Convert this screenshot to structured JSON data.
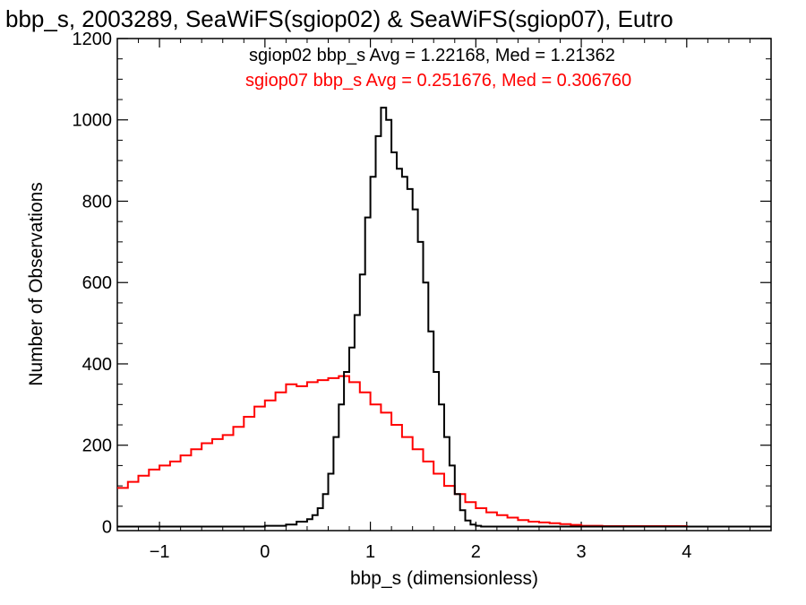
{
  "chart_data": {
    "type": "line",
    "title": "bbp_s, 2003289, SeaWiFS(sgiop02) & SeaWiFS(sgiop07), Eutro",
    "xlabel": "bbp_s (dimensionless)",
    "ylabel": "Number of Observations",
    "xlim": [
      -1.4,
      4.8
    ],
    "ylim": [
      -10,
      1200
    ],
    "x_ticks": [
      -1,
      0,
      1,
      2,
      3,
      4
    ],
    "x_tick_labels": [
      "−1",
      "0",
      "1",
      "2",
      "3",
      "4"
    ],
    "y_ticks": [
      0,
      200,
      400,
      600,
      800,
      1000,
      1200
    ],
    "y_tick_labels": [
      "0",
      "200",
      "400",
      "600",
      "800",
      "1000",
      "1200"
    ],
    "grid": false,
    "legend_position": "top-right",
    "series": [
      {
        "name": "sgiop02 bbp_s Avg = 1.22168, Med = 1.21362",
        "color": "#000000",
        "step": "histogram",
        "x": [
          -1.4,
          0.0,
          0.2,
          0.3,
          0.4,
          0.45,
          0.5,
          0.55,
          0.6,
          0.65,
          0.7,
          0.75,
          0.8,
          0.85,
          0.9,
          0.95,
          1.0,
          1.05,
          1.1,
          1.15,
          1.2,
          1.25,
          1.3,
          1.35,
          1.4,
          1.45,
          1.5,
          1.55,
          1.6,
          1.65,
          1.7,
          1.75,
          1.8,
          1.85,
          1.9,
          1.95,
          2.0,
          2.05,
          2.1,
          4.8
        ],
        "y": [
          0,
          2,
          5,
          12,
          18,
          28,
          45,
          80,
          130,
          220,
          300,
          380,
          440,
          520,
          620,
          760,
          860,
          960,
          1030,
          1000,
          920,
          880,
          860,
          830,
          780,
          700,
          600,
          480,
          380,
          300,
          220,
          150,
          80,
          40,
          15,
          5,
          2,
          0,
          0,
          0
        ]
      },
      {
        "name": "sgiop07 bbp_s Avg = 0.251676, Med = 0.306760",
        "color": "#ff0000",
        "step": "histogram",
        "x": [
          -1.4,
          -1.3,
          -1.2,
          -1.1,
          -1.0,
          -0.9,
          -0.8,
          -0.7,
          -0.6,
          -0.5,
          -0.4,
          -0.3,
          -0.2,
          -0.1,
          0.0,
          0.1,
          0.2,
          0.3,
          0.4,
          0.5,
          0.6,
          0.7,
          0.8,
          0.9,
          1.0,
          1.1,
          1.2,
          1.3,
          1.4,
          1.5,
          1.6,
          1.7,
          1.8,
          1.9,
          2.0,
          2.1,
          2.2,
          2.3,
          2.4,
          2.5,
          2.6,
          2.7,
          2.8,
          2.9,
          3.0,
          3.2,
          3.5,
          4.0,
          4.8
        ],
        "y": [
          95,
          110,
          125,
          140,
          150,
          160,
          175,
          190,
          205,
          215,
          225,
          245,
          270,
          295,
          310,
          330,
          350,
          345,
          355,
          360,
          365,
          370,
          355,
          330,
          300,
          280,
          250,
          220,
          190,
          160,
          130,
          100,
          80,
          60,
          45,
          35,
          28,
          22,
          16,
          12,
          10,
          8,
          6,
          4,
          2,
          1,
          1,
          0,
          0
        ]
      }
    ]
  }
}
